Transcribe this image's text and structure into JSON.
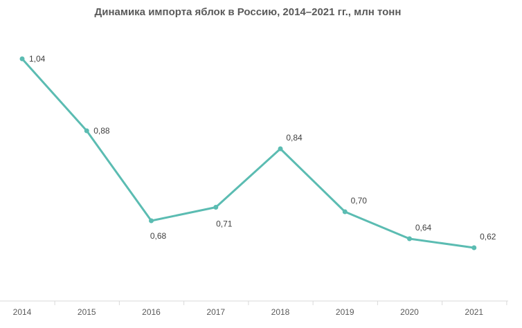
{
  "chart_data": {
    "type": "line",
    "title": "Динамика импорта яблок в Россию, 2014–2021 гг.,  млн тонн",
    "xlabel": "",
    "ylabel": "",
    "categories": [
      "2014",
      "2015",
      "2016",
      "2017",
      "2018",
      "2019",
      "2020",
      "2021"
    ],
    "series": [
      {
        "values": [
          1.04,
          0.88,
          0.68,
          0.71,
          0.84,
          0.7,
          0.64,
          0.62
        ],
        "labels": [
          "1,04",
          "0,88",
          "0,68",
          "0,71",
          "0,84",
          "0,70",
          "0,64",
          "0,62"
        ],
        "color": "#5bbcb2"
      }
    ],
    "ylim": [
      0.4,
      1.04
    ],
    "grid": false,
    "legend": "none",
    "axis_color": "#d9d9d9"
  }
}
